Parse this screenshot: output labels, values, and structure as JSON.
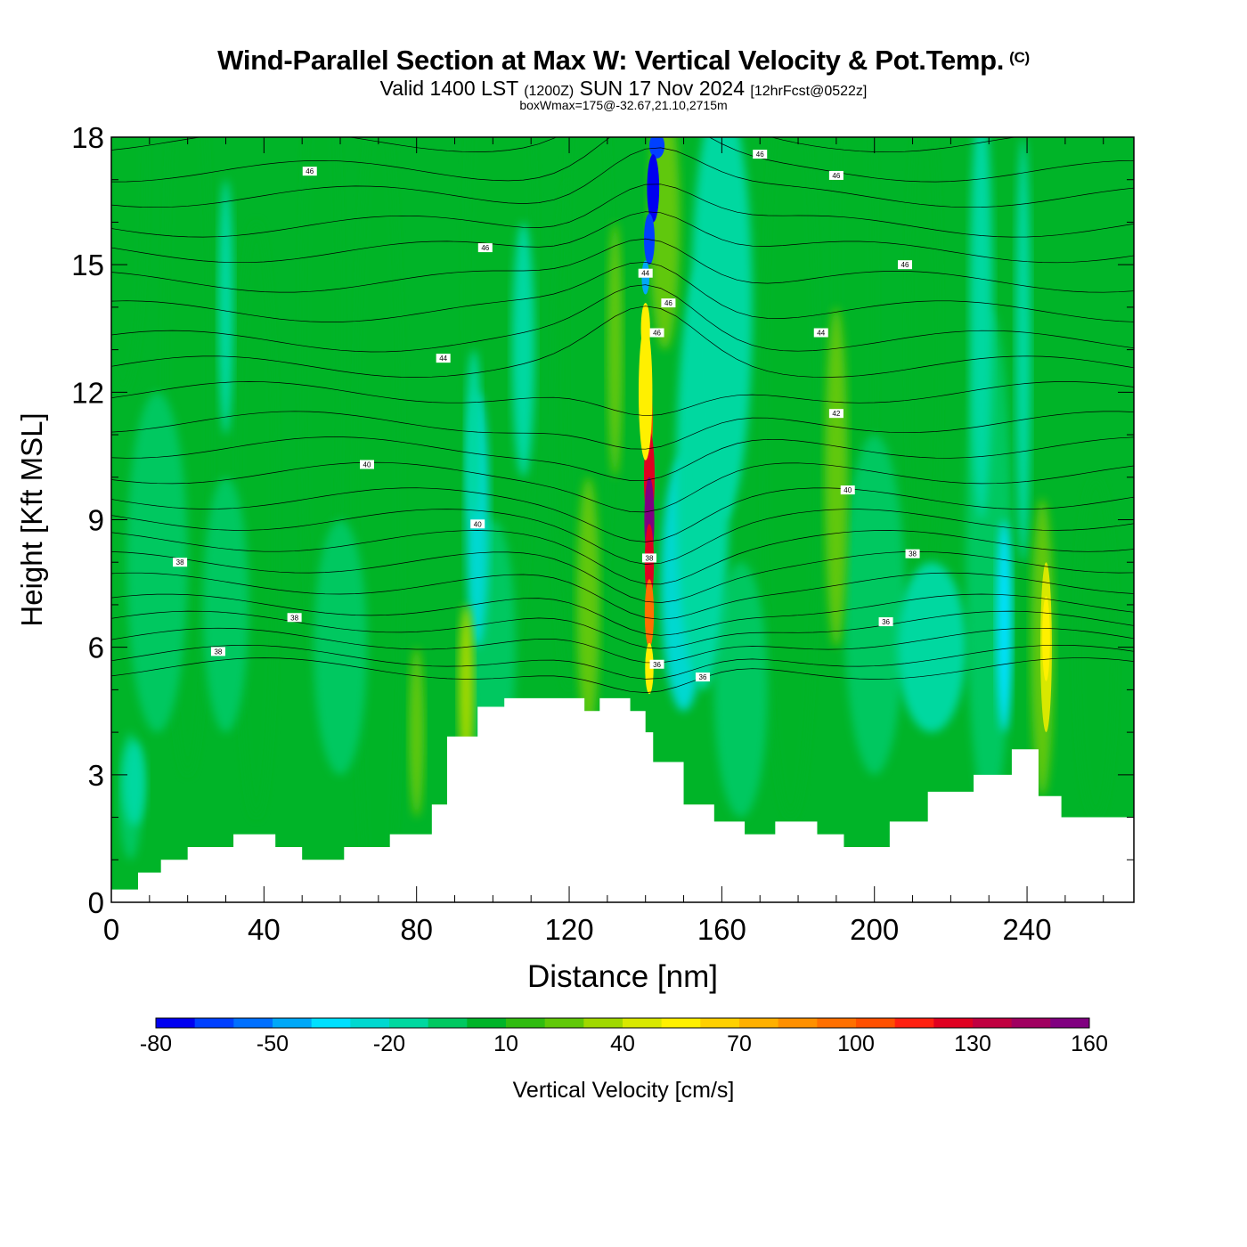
{
  "header": {
    "title": "Wind-Parallel Section at Max W: Vertical Velocity & Pot.Temp.",
    "copyright": "(C)",
    "valid_main": "Valid 1400 LST",
    "valid_z": "(1200Z)",
    "valid_date": "SUN 17 Nov 2024",
    "valid_fcst": "[12hrFcst@0522z]",
    "stats": "boxWmax=175@-32.67,21.10,2715m"
  },
  "chart_data": {
    "type": "heatmap",
    "title": "Wind-Parallel Section at Max W: Vertical Velocity & Pot.Temp.",
    "xlabel": "Distance [nm]",
    "ylabel": "Height [Kft MSL]",
    "xlim": [
      0,
      268
    ],
    "ylim": [
      0,
      18
    ],
    "x_ticks": [
      "0",
      "40",
      "80",
      "120",
      "160",
      "200",
      "240"
    ],
    "y_ticks": [
      "0",
      "3",
      "6",
      "9",
      "12",
      "15",
      "18"
    ],
    "colorbar": {
      "label": "Vertical Velocity [cm/s]",
      "tick_labels": [
        "-80",
        "-50",
        "-20",
        "10",
        "40",
        "70",
        "100",
        "130",
        "160"
      ],
      "levels": [
        -80,
        -70,
        -60,
        -50,
        -40,
        -30,
        -20,
        -10,
        0,
        10,
        20,
        30,
        40,
        50,
        60,
        70,
        80,
        90,
        100,
        110,
        120,
        130,
        140,
        150,
        160,
        170
      ],
      "colors": [
        "#0000f0",
        "#0040ff",
        "#0070ff",
        "#00a8f8",
        "#00e0ff",
        "#00d8d0",
        "#00d8a0",
        "#00c860",
        "#00b428",
        "#30bc10",
        "#60c808",
        "#a0d800",
        "#d8e800",
        "#fff000",
        "#ffd000",
        "#ffb000",
        "#ff9000",
        "#ff7000",
        "#ff5000",
        "#ff2010",
        "#e00020",
        "#c00040",
        "#a00060",
        "#800080"
      ]
    },
    "theta_contour_labels": [
      "46",
      "46",
      "46",
      "46",
      "46",
      "46",
      "46",
      "44",
      "44",
      "44",
      "42",
      "40",
      "40",
      "40",
      "38",
      "38",
      "38",
      "38",
      "38",
      "36",
      "36",
      "36"
    ],
    "updraft_max": {
      "value": 175,
      "units": "cm/s",
      "x_nm": 141,
      "height_kft": 9
    },
    "downdraft_min": {
      "value": -80,
      "units": "cm/s",
      "x_nm": 142,
      "height_kft": 16.5
    },
    "terrain_profile": {
      "x_nm": [
        0,
        7,
        13,
        20,
        32,
        43,
        50,
        61,
        73,
        84,
        88,
        96,
        103,
        112,
        124,
        128,
        136,
        140,
        142,
        150,
        158,
        166,
        174,
        185,
        192,
        204,
        214,
        226,
        236,
        243,
        249,
        268
      ],
      "height_kft": [
        0.3,
        0.7,
        1.0,
        1.3,
        1.6,
        1.3,
        1.0,
        1.3,
        1.6,
        2.3,
        3.9,
        4.6,
        4.8,
        4.8,
        4.5,
        4.8,
        4.5,
        4.0,
        3.3,
        2.3,
        1.9,
        1.6,
        1.9,
        1.6,
        1.3,
        1.9,
        2.6,
        3.0,
        3.6,
        2.5,
        2.0,
        2.6
      ]
    }
  }
}
